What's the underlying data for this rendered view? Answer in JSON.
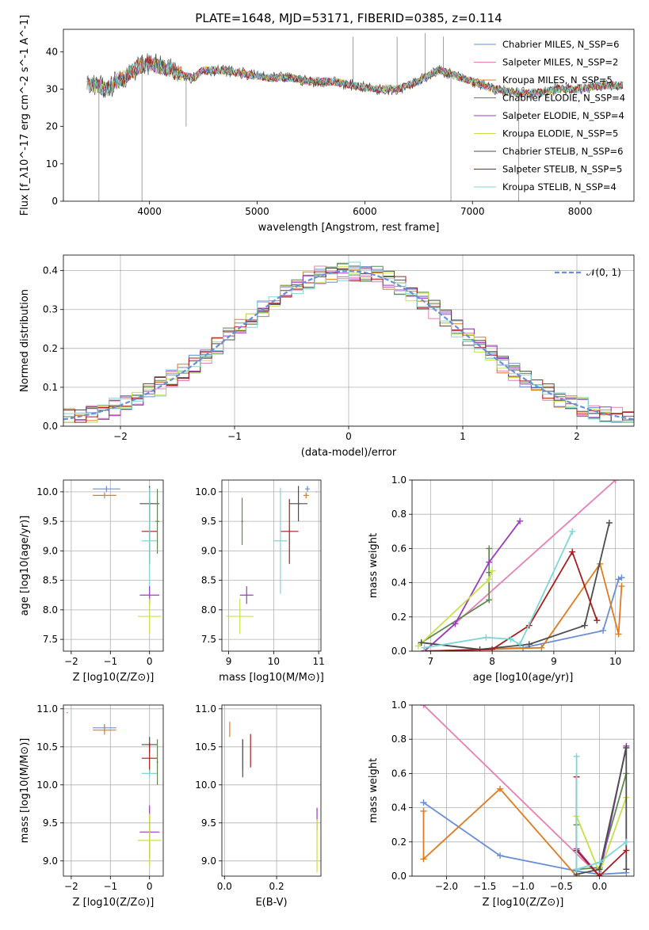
{
  "figure": {
    "title": "PLATE=1648, MJD=53171, FIBERID=0385, z=0.114"
  },
  "colors": {
    "Chabrier MILES": "#6a8fd6",
    "Salpeter MILES": "#e67fb8",
    "Kroupa MILES": "#e07b1f",
    "Chabrier ELODIE": "#5e8a4e",
    "Salpeter ELODIE": "#9a3bc0",
    "Kroupa ELODIE": "#c8e04a",
    "Chabrier STELIB": "#4d4d4d",
    "Salpeter STELIB": "#a81d1d",
    "Kroupa STELIB": "#7fd6d6"
  },
  "chart_data": [
    {
      "id": "spectrum",
      "type": "line",
      "xlabel": "wavelength [Angstrom, rest frame]",
      "ylabel": "Flux [f_λ10^-17 erg cm^-2 s^-1 A^-1]",
      "xlim": [
        3200,
        8500
      ],
      "ylim": [
        0,
        46
      ],
      "xticks": [
        4000,
        5000,
        6000,
        7000,
        8000
      ],
      "yticks": [
        0,
        10,
        20,
        30,
        40
      ],
      "grid": false,
      "legend_position": "top-right",
      "series": [
        {
          "name": "Chabrier MILES, N_SSP=6",
          "color": "#6a8fd6"
        },
        {
          "name": "Salpeter MILES, N_SSP=2",
          "color": "#e67fb8"
        },
        {
          "name": "Kroupa MILES, N_SSP=5",
          "color": "#e07b1f"
        },
        {
          "name": "Chabrier ELODIE, N_SSP=4",
          "color": "#5e8a4e"
        },
        {
          "name": "Salpeter ELODIE, N_SSP=4",
          "color": "#9a3bc0"
        },
        {
          "name": "Kroupa ELODIE, N_SSP=5",
          "color": "#c8e04a"
        },
        {
          "name": "Chabrier STELIB, N_SSP=6",
          "color": "#4d4d4d"
        },
        {
          "name": "Salpeter STELIB, N_SSP=5",
          "color": "#a81d1d"
        },
        {
          "name": "Kroupa STELIB, N_SSP=4",
          "color": "#7fd6d6"
        }
      ],
      "continuum": {
        "x": [
          3420,
          3500,
          3600,
          3700,
          3800,
          3900,
          4000,
          4100,
          4200,
          4300,
          4400,
          4500,
          4700,
          4900,
          5100,
          5300,
          5500,
          5700,
          5900,
          6100,
          6300,
          6500,
          6600,
          6700,
          6800,
          6900,
          7000,
          7200,
          7400,
          7600,
          7800,
          8000,
          8200,
          8400
        ],
        "y": [
          32,
          31,
          30,
          32,
          34,
          36,
          37,
          36,
          35,
          34,
          33,
          35,
          35,
          34,
          33,
          33,
          32,
          32,
          31,
          30,
          30,
          32,
          34,
          35,
          34,
          33,
          32,
          30,
          29,
          29,
          30,
          30,
          31,
          31
        ]
      },
      "spikes": [
        {
          "x": 3530,
          "y": 0
        },
        {
          "x": 3930,
          "y": 0
        },
        {
          "x": 4340,
          "y": 20
        },
        {
          "x": 6800,
          "y": 0
        },
        {
          "x": 7430,
          "y": 0
        },
        {
          "x": 5890,
          "y": 44
        },
        {
          "x": 6300,
          "y": 44
        },
        {
          "x": 6560,
          "y": 45
        },
        {
          "x": 6730,
          "y": 44
        }
      ]
    },
    {
      "id": "residuals",
      "type": "step",
      "xlabel": "(data-model)/error",
      "ylabel": "Normed distribution",
      "xlim": [
        -2.5,
        2.5
      ],
      "ylim": [
        0,
        0.44
      ],
      "xticks": [
        -2,
        -1,
        0,
        1,
        2
      ],
      "yticks": [
        0.0,
        0.1,
        0.2,
        0.3,
        0.4
      ],
      "grid": true,
      "reference": {
        "name": "𝒩(0, 1)",
        "mean": 0,
        "sigma": 1,
        "color": "#6a8fd6"
      },
      "histogram_bins": 50
    },
    {
      "id": "age_vs_Z",
      "type": "errorbar",
      "xlabel": "Z [log10(Z/Z⊙)]",
      "ylabel": "age  [log10(age/yr)]",
      "xlim": [
        -2.2,
        0.35
      ],
      "ylim": [
        7.3,
        10.2
      ],
      "xticks": [
        -2,
        -1,
        0
      ],
      "yticks": [
        7.5,
        8.0,
        8.5,
        9.0,
        9.5,
        10.0
      ],
      "points": [
        {
          "color": "#6a8fd6",
          "x": -1.1,
          "y": 10.05,
          "xerr": 0.35,
          "yerr": 0.05
        },
        {
          "color": "#e07b1f",
          "x": -1.15,
          "y": 9.94,
          "xerr": 0.3,
          "yerr": 0.05
        },
        {
          "color": "#e67fb8",
          "x": -2.1,
          "y": 10.0,
          "xerr": 0.02,
          "yerr": 0.0
        },
        {
          "color": "#4d4d4d",
          "x": 0.0,
          "y": 9.8,
          "xerr": 0.25,
          "yerr": 0.3
        },
        {
          "color": "#a81d1d",
          "x": 0.0,
          "y": 9.33,
          "xerr": 0.2,
          "yerr": 0.55
        },
        {
          "color": "#7fd6d6",
          "x": 0.0,
          "y": 9.17,
          "xerr": 0.2,
          "yerr": 0.9
        },
        {
          "color": "#9a3bc0",
          "x": 0.0,
          "y": 8.25,
          "xerr": 0.25,
          "yerr": 0.15
        },
        {
          "color": "#c8e04a",
          "x": 0.0,
          "y": 7.89,
          "xerr": 0.3,
          "yerr": 0.3
        },
        {
          "color": "#5e8a4e",
          "x": 0.2,
          "y": 9.5,
          "xerr": 0.05,
          "yerr": 0.55
        }
      ]
    },
    {
      "id": "age_vs_mass",
      "type": "errorbar",
      "xlabel": "mass [log10(M/M⊙)]",
      "ylabel": "",
      "xlim": [
        8.85,
        11.05
      ],
      "ylim": [
        7.3,
        10.2
      ],
      "xticks": [
        9,
        10,
        11
      ],
      "yticks": [
        7.5,
        8.0,
        8.5,
        9.0,
        9.5,
        10.0
      ],
      "points": [
        {
          "color": "#6a8fd6",
          "x": 10.75,
          "y": 10.05,
          "xerr": 0.05,
          "yerr": 0.05
        },
        {
          "color": "#e07b1f",
          "x": 10.72,
          "y": 9.94,
          "xerr": 0.06,
          "yerr": 0.05
        },
        {
          "color": "#e67fb8",
          "x": 10.95,
          "y": 10.0,
          "xerr": 0.02,
          "yerr": 0.0
        },
        {
          "color": "#4d4d4d",
          "x": 10.55,
          "y": 9.8,
          "xerr": 0.2,
          "yerr": 0.3
        },
        {
          "color": "#a81d1d",
          "x": 10.35,
          "y": 9.33,
          "xerr": 0.2,
          "yerr": 0.55
        },
        {
          "color": "#7fd6d6",
          "x": 10.15,
          "y": 9.17,
          "xerr": 0.15,
          "yerr": 0.9
        },
        {
          "color": "#9a3bc0",
          "x": 9.4,
          "y": 8.25,
          "xerr": 0.15,
          "yerr": 0.15
        },
        {
          "color": "#c8e04a",
          "x": 9.25,
          "y": 7.89,
          "xerr": 0.3,
          "yerr": 0.3
        },
        {
          "color": "#5e8a4e",
          "x": 9.3,
          "y": 9.5,
          "xerr": 0.02,
          "yerr": 0.4
        }
      ]
    },
    {
      "id": "weight_vs_age",
      "type": "line",
      "xlabel": "age  [log10(age/yr)]",
      "ylabel": "mass weight",
      "xlim": [
        6.7,
        10.3
      ],
      "ylim": [
        0,
        1
      ],
      "xticks": [
        7,
        8,
        9,
        10
      ],
      "yticks": [
        0.0,
        0.2,
        0.4,
        0.6,
        0.8,
        1.0
      ],
      "grid": true,
      "series": [
        {
          "color": "#6a8fd6",
          "x": [
            6.9,
            8.5,
            9.8,
            10.05,
            10.1
          ],
          "y": [
            0.0,
            0.02,
            0.12,
            0.42,
            0.43
          ]
        },
        {
          "color": "#e67fb8",
          "x": [
            6.9,
            10.0
          ],
          "y": [
            0.0,
            1.0
          ]
        },
        {
          "color": "#e07b1f",
          "x": [
            6.9,
            8.8,
            9.75,
            10.05,
            10.1
          ],
          "y": [
            0.0,
            0.02,
            0.51,
            0.1,
            0.38
          ]
        },
        {
          "color": "#5e8a4e",
          "x": [
            6.85,
            7.95,
            7.95,
            7.95
          ],
          "y": [
            0.05,
            0.3,
            0.6,
            0.46
          ]
        },
        {
          "color": "#9a3bc0",
          "x": [
            6.9,
            7.4,
            7.95,
            8.45
          ],
          "y": [
            0.0,
            0.16,
            0.52,
            0.76
          ]
        },
        {
          "color": "#c8e04a",
          "x": [
            6.8,
            7.95,
            8.0
          ],
          "y": [
            0.03,
            0.42,
            0.47
          ]
        },
        {
          "color": "#4d4d4d",
          "x": [
            6.85,
            7.8,
            8.6,
            9.5,
            9.9
          ],
          "y": [
            0.05,
            0.01,
            0.04,
            0.15,
            0.75
          ]
        },
        {
          "color": "#a81d1d",
          "x": [
            6.9,
            8.0,
            8.6,
            9.3,
            9.7
          ],
          "y": [
            0.0,
            0.01,
            0.15,
            0.58,
            0.18
          ]
        },
        {
          "color": "#7fd6d6",
          "x": [
            6.9,
            7.9,
            8.3,
            8.45,
            9.3
          ],
          "y": [
            0.02,
            0.08,
            0.07,
            0.04,
            0.7
          ]
        }
      ]
    },
    {
      "id": "mass_vs_Z",
      "type": "errorbar",
      "xlabel": "Z [log10(Z/Z⊙)]",
      "ylabel": "mass [log10(M/M⊙)]",
      "xlim": [
        -2.2,
        0.35
      ],
      "ylim": [
        8.8,
        11.05
      ],
      "xticks": [
        -2,
        -1,
        0
      ],
      "yticks": [
        9.0,
        9.5,
        10.0,
        10.5,
        11.0
      ],
      "points": [
        {
          "color": "#6a8fd6",
          "x": -1.15,
          "y": 10.75,
          "xerr": 0.3,
          "yerr": 0.05
        },
        {
          "color": "#e07b1f",
          "x": -1.15,
          "y": 10.72,
          "xerr": 0.3,
          "yerr": 0.06
        },
        {
          "color": "#e67fb8",
          "x": -2.1,
          "y": 10.95,
          "xerr": 0.02,
          "yerr": 0.0
        },
        {
          "color": "#4d4d4d",
          "x": 0.0,
          "y": 10.53,
          "xerr": 0.2,
          "yerr": 0.1
        },
        {
          "color": "#a81d1d",
          "x": 0.0,
          "y": 10.35,
          "xerr": 0.2,
          "yerr": 0.2
        },
        {
          "color": "#7fd6d6",
          "x": 0.0,
          "y": 10.15,
          "xerr": 0.2,
          "yerr": 0.05
        },
        {
          "color": "#9a3bc0",
          "x": 0.0,
          "y": 9.38,
          "xerr": 0.25,
          "yerr": 0.35
        },
        {
          "color": "#c8e04a",
          "x": 0.0,
          "y": 9.27,
          "xerr": 0.3,
          "yerr": 0.35
        },
        {
          "color": "#5e8a4e",
          "x": 0.2,
          "y": 10.3,
          "xerr": 0.02,
          "yerr": 0.3
        }
      ]
    },
    {
      "id": "mass_vs_ebv",
      "type": "errorbar",
      "xlabel": "E(B-V)",
      "ylabel": "",
      "xlim": [
        -0.01,
        0.37
      ],
      "ylim": [
        8.8,
        11.05
      ],
      "xticks": [
        0.0,
        0.2
      ],
      "yticks": [
        9.0,
        9.5,
        10.0,
        10.5,
        11.0
      ],
      "points": [
        {
          "color": "#e67fb8",
          "x": 0.0,
          "y": 10.95,
          "xerr": 0.0,
          "yerr": 0.0
        },
        {
          "color": "#e07b1f",
          "x": 0.02,
          "y": 10.73,
          "xerr": 0.0,
          "yerr": 0.1
        },
        {
          "color": "#6a8fd6",
          "x": 0.07,
          "y": 10.4,
          "xerr": 0.0,
          "yerr": 0.2
        },
        {
          "color": "#4d4d4d",
          "x": 0.07,
          "y": 10.35,
          "xerr": 0.0,
          "yerr": 0.25
        },
        {
          "color": "#a81d1d",
          "x": 0.1,
          "y": 10.45,
          "xerr": 0.0,
          "yerr": 0.22
        },
        {
          "color": "#9a3bc0",
          "x": 0.355,
          "y": 9.55,
          "xerr": 0.0,
          "yerr": 0.15
        },
        {
          "color": "#c8e04a",
          "x": 0.355,
          "y": 9.2,
          "xerr": 0.0,
          "yerr": 0.35
        }
      ]
    },
    {
      "id": "weight_vs_Z",
      "type": "line",
      "xlabel": "Z [log10(Z/Z⊙)]",
      "ylabel": "mass weight",
      "xlim": [
        -2.45,
        0.45
      ],
      "ylim": [
        0,
        1
      ],
      "xticks": [
        -2.0,
        -1.5,
        -1.0,
        -0.5,
        0.0
      ],
      "yticks": [
        0.0,
        0.2,
        0.4,
        0.6,
        0.8,
        1.0
      ],
      "grid": true,
      "series": [
        {
          "color": "#6a8fd6",
          "x": [
            -2.3,
            -1.3,
            -0.3,
            0.0,
            0.35
          ],
          "y": [
            0.43,
            0.12,
            0.03,
            0.01,
            0.02
          ]
        },
        {
          "color": "#e67fb8",
          "x": [
            -2.3,
            0.0
          ],
          "y": [
            1.0,
            0.0
          ]
        },
        {
          "color": "#e07b1f",
          "x": [
            -2.3,
            -2.3,
            -1.3,
            -0.3,
            0.0
          ],
          "y": [
            0.38,
            0.1,
            0.51,
            0.0,
            0.0
          ]
        },
        {
          "color": "#5e8a4e",
          "x": [
            -0.3,
            -0.3,
            0.0,
            0.35
          ],
          "y": [
            0.3,
            0.04,
            0.05,
            0.6
          ]
        },
        {
          "color": "#9a3bc0",
          "x": [
            -0.3,
            0.0,
            0.35
          ],
          "y": [
            0.16,
            0.0,
            0.76
          ]
        },
        {
          "color": "#c8e04a",
          "x": [
            -0.3,
            0.0,
            0.35
          ],
          "y": [
            0.35,
            0.02,
            0.46
          ]
        },
        {
          "color": "#4d4d4d",
          "x": [
            -0.3,
            0.0,
            0.35,
            0.35
          ],
          "y": [
            0.01,
            0.04,
            0.75,
            0.04
          ]
        },
        {
          "color": "#a81d1d",
          "x": [
            -0.3,
            -0.3,
            0.0,
            0.35
          ],
          "y": [
            0.58,
            0.15,
            0.0,
            0.15
          ]
        },
        {
          "color": "#7fd6d6",
          "x": [
            -0.3,
            -0.3,
            0.0,
            0.35
          ],
          "y": [
            0.7,
            0.04,
            0.08,
            0.2
          ]
        }
      ]
    }
  ]
}
